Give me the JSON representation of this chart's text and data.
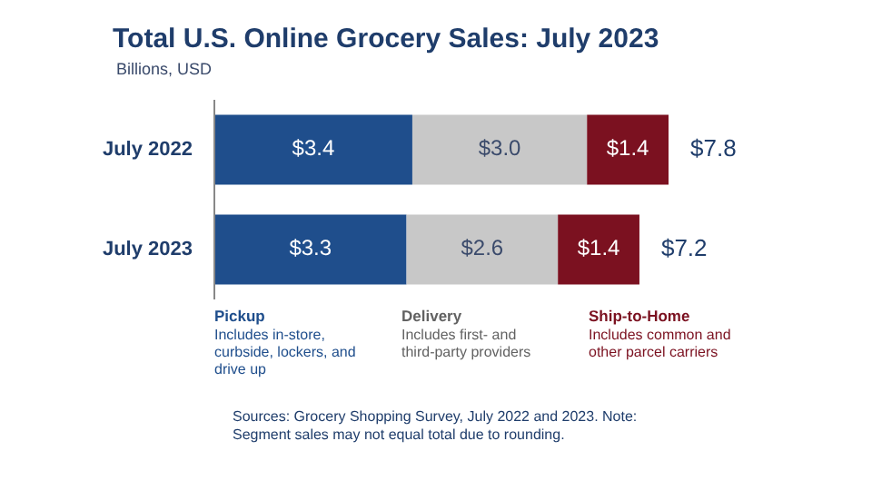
{
  "chart_data": {
    "type": "bar",
    "title": "Total U.S. Online Grocery Sales: July 2023",
    "subtitle": "Billions, USD",
    "orientation": "horizontal",
    "stacked": true,
    "categories": [
      "July 2022",
      "July 2023"
    ],
    "series": [
      {
        "name": "Pickup",
        "color": "#1f4e8c",
        "values": [
          3.4,
          3.3
        ],
        "value_labels": [
          "$3.4",
          "$3.3"
        ]
      },
      {
        "name": "Delivery",
        "color": "#c8c8c8",
        "values": [
          3.0,
          2.6
        ],
        "value_labels": [
          "$3.0",
          "$2.6"
        ]
      },
      {
        "name": "Ship-to-Home",
        "color": "#7b1120",
        "values": [
          1.4,
          1.4
        ],
        "value_labels": [
          "$1.4",
          "$1.4"
        ]
      }
    ],
    "totals": [
      "$7.8",
      "$7.2"
    ],
    "legend": "bottom",
    "annotations": [
      "Includes in-store, curbside, lockers, and drive up",
      "Includes first- and third-party providers",
      "Includes common and other parcel carriers",
      "Sources: Grocery Shopping Survey, July 2022 and 2023. Note: Segment sales may not equal total due to rounding."
    ]
  }
}
